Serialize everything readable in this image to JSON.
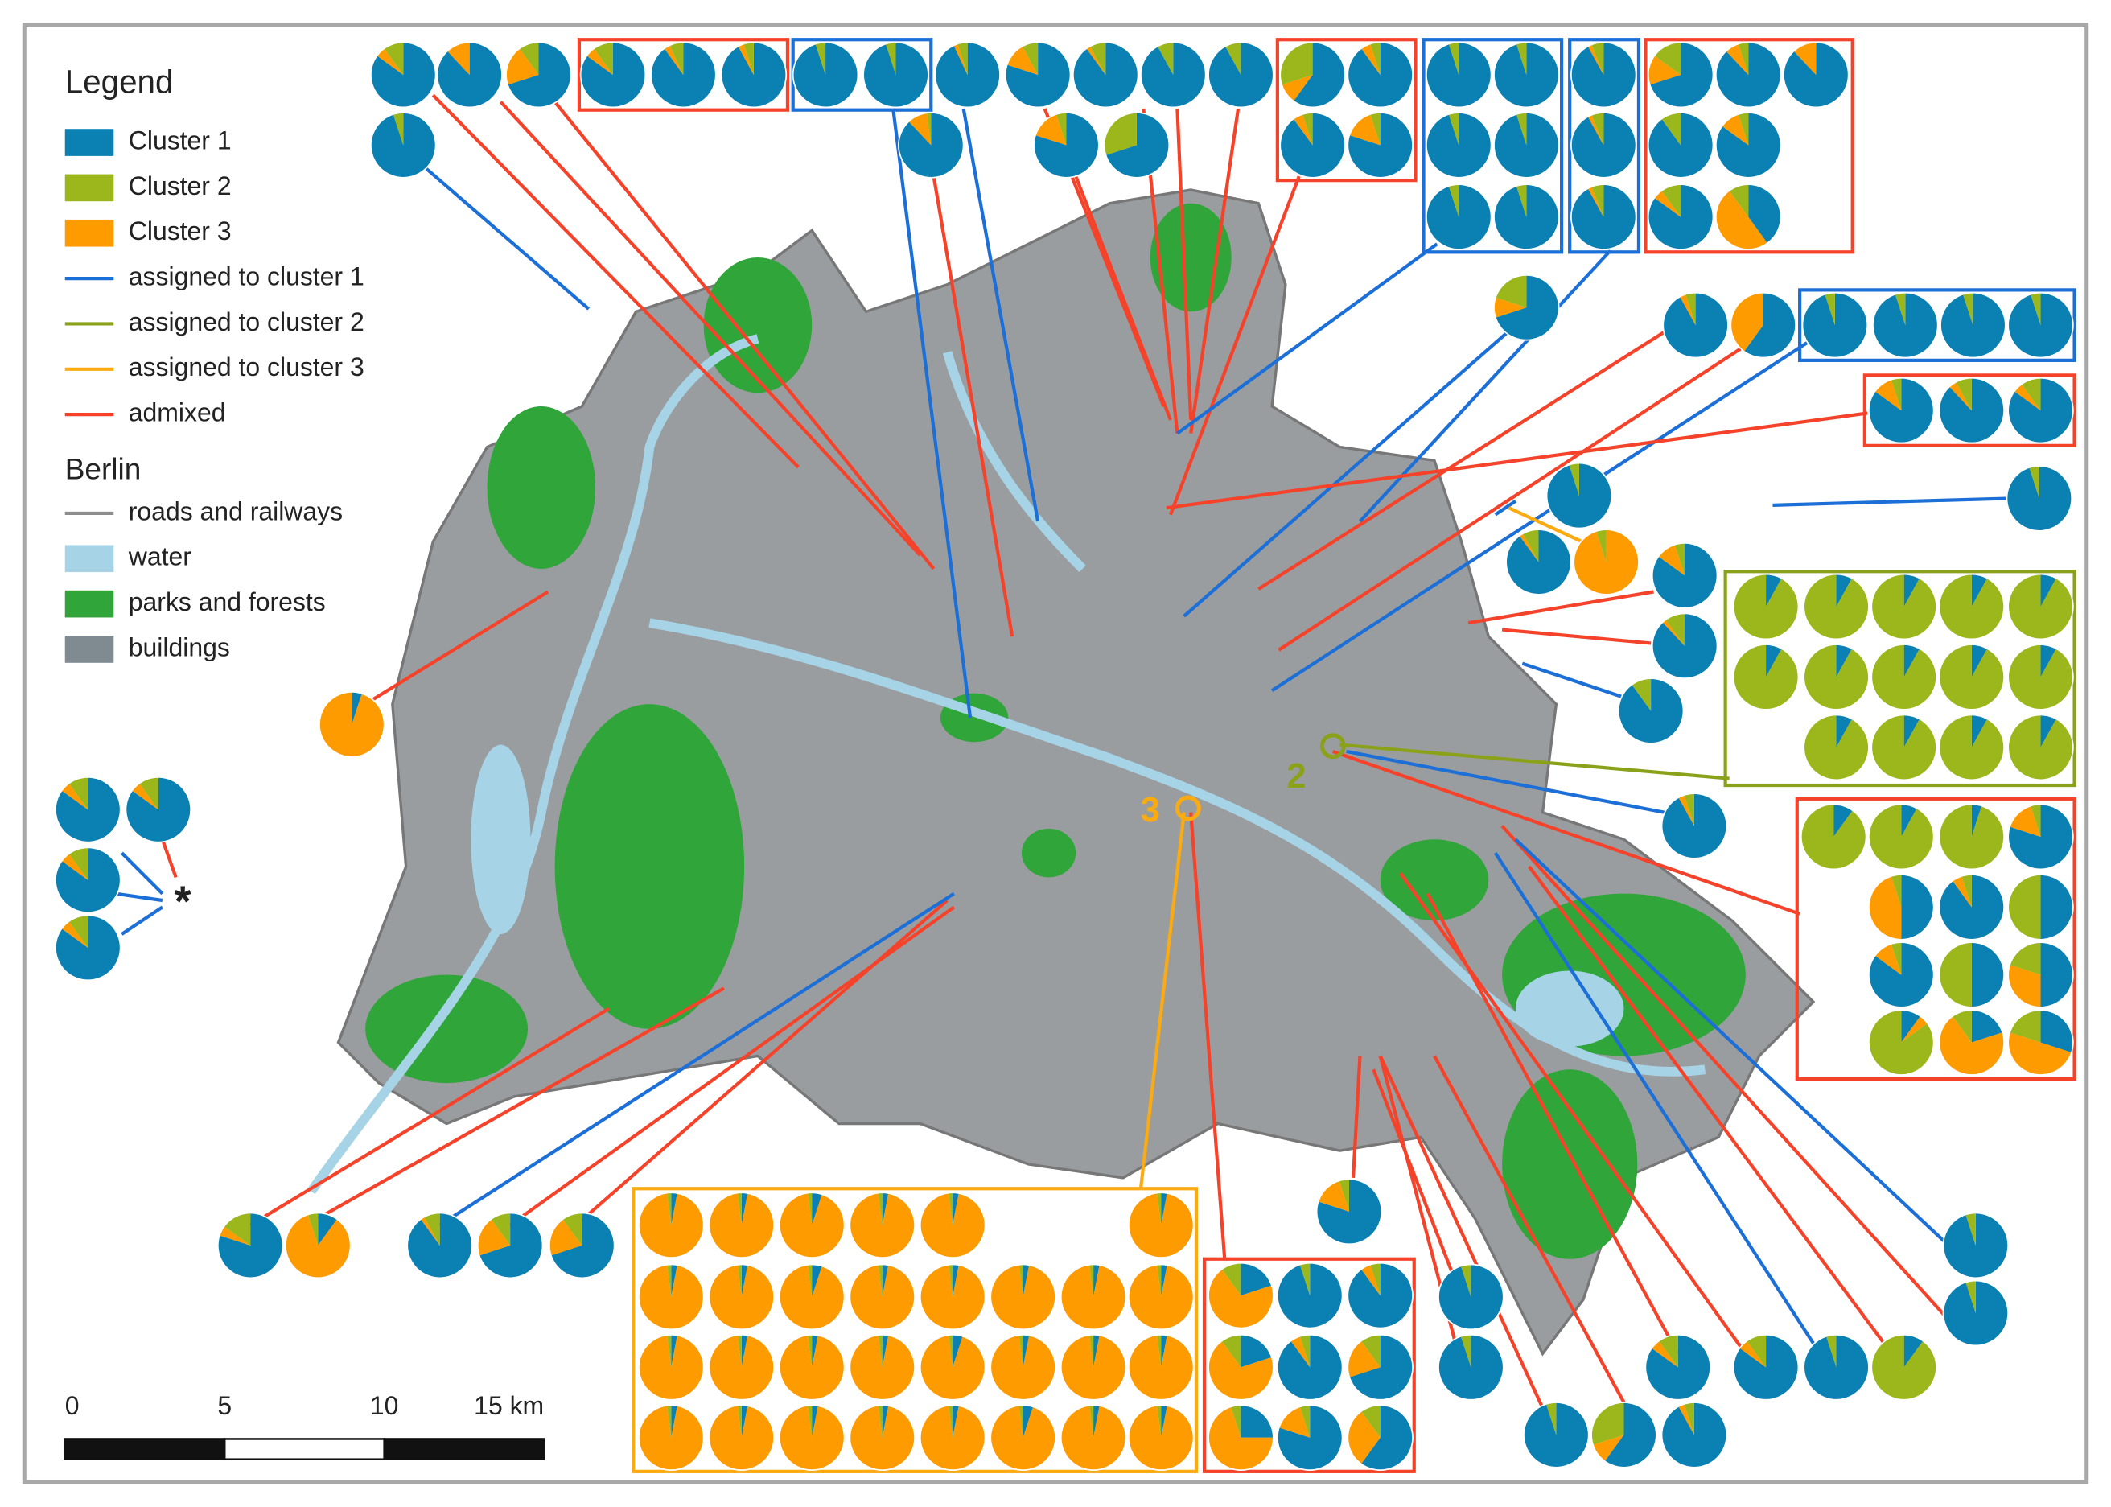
{
  "legend": {
    "title": "Legend",
    "clusters": [
      {
        "label": "Cluster 1",
        "color": "#0b80b2"
      },
      {
        "label": "Cluster 2",
        "color": "#9bb71c"
      },
      {
        "label": "Cluster 3",
        "color": "#fd9b00"
      }
    ],
    "assignments": [
      {
        "label": "assigned to cluster 1",
        "color": "#1b6fd6"
      },
      {
        "label": "assigned to cluster 2",
        "color": "#8aa21a"
      },
      {
        "label": "assigned to cluster 3",
        "color": "#fbab12"
      },
      {
        "label": "admixed",
        "color": "#f4432a"
      }
    ],
    "berlin_title": "Berlin",
    "berlin_lines": [
      {
        "label": "roads and railways",
        "color": "#8c8c8c"
      }
    ],
    "berlin_swatches": [
      {
        "label": "water",
        "color": "#a6d3e6"
      },
      {
        "label": "parks and forests",
        "color": "#2fa53a"
      },
      {
        "label": "buildings",
        "color": "#7f8a91"
      }
    ]
  },
  "map_labels": {
    "site_2": "2",
    "site_3": "3",
    "star": "*"
  },
  "scale_bar": {
    "labels": [
      "0",
      "5",
      "10",
      "15 km"
    ]
  },
  "pies": [
    [
      85,
      10,
      5
    ],
    [
      88,
      0,
      12
    ],
    [
      70,
      10,
      20
    ],
    [
      85,
      10,
      5
    ],
    [
      90,
      7,
      3
    ],
    [
      92,
      5,
      3
    ],
    [
      95,
      5,
      0
    ],
    [
      95,
      5,
      0
    ],
    [
      93,
      5,
      2
    ],
    [
      80,
      8,
      12
    ],
    [
      90,
      8,
      2
    ],
    [
      92,
      8,
      0
    ],
    [
      92,
      8,
      0
    ],
    [
      95,
      5,
      0
    ],
    [
      88,
      2,
      10
    ],
    [
      80,
      5,
      15
    ],
    [
      70,
      30,
      0
    ],
    [
      60,
      30,
      10
    ],
    [
      90,
      5,
      5
    ],
    [
      90,
      5,
      5
    ],
    [
      80,
      5,
      15
    ],
    [
      95,
      5,
      0
    ],
    [
      95,
      5,
      0
    ],
    [
      95,
      5,
      0
    ],
    [
      95,
      5,
      0
    ],
    [
      95,
      5,
      0
    ],
    [
      95,
      5,
      0
    ],
    [
      92,
      6,
      2
    ],
    [
      92,
      6,
      2
    ],
    [
      92,
      6,
      2
    ],
    [
      70,
      15,
      15
    ],
    [
      88,
      5,
      7
    ],
    [
      88,
      0,
      12
    ],
    [
      90,
      10,
      0
    ],
    [
      85,
      5,
      10
    ],
    [
      85,
      10,
      5
    ],
    [
      40,
      10,
      50
    ],
    [
      70,
      20,
      10
    ],
    [
      92,
      5,
      3
    ],
    [
      60,
      0,
      40
    ],
    [
      95,
      5,
      0
    ],
    [
      95,
      5,
      0
    ],
    [
      95,
      5,
      0
    ],
    [
      95,
      5,
      0
    ],
    [
      85,
      5,
      10
    ],
    [
      88,
      8,
      4
    ],
    [
      85,
      10,
      5
    ],
    [
      95,
      5,
      0
    ],
    [
      95,
      5,
      0
    ],
    [
      90,
      8,
      2
    ],
    [
      0,
      5,
      95
    ],
    [
      85,
      5,
      10
    ],
    [
      88,
      10,
      2
    ],
    [
      90,
      10,
      0
    ],
    [
      8,
      92,
      0
    ],
    [
      8,
      92,
      0
    ],
    [
      8,
      92,
      0
    ],
    [
      8,
      92,
      0
    ],
    [
      8,
      92,
      0
    ],
    [
      8,
      92,
      0
    ],
    [
      8,
      92,
      0
    ],
    [
      8,
      92,
      0
    ],
    [
      8,
      92,
      0
    ],
    [
      8,
      92,
      0
    ],
    [
      8,
      92,
      0
    ],
    [
      8,
      92,
      0
    ],
    [
      8,
      92,
      0
    ],
    [
      8,
      92,
      0
    ],
    [
      92,
      5,
      3
    ],
    [
      10,
      90,
      0
    ],
    [
      8,
      92,
      0
    ],
    [
      5,
      95,
      0
    ],
    [
      80,
      5,
      15
    ],
    [
      50,
      5,
      45
    ],
    [
      90,
      5,
      5
    ],
    [
      50,
      50,
      0
    ],
    [
      85,
      5,
      10
    ],
    [
      50,
      50,
      0
    ],
    [
      50,
      20,
      30
    ],
    [
      10,
      85,
      5
    ],
    [
      20,
      10,
      70
    ],
    [
      30,
      20,
      50
    ],
    [
      5,
      0,
      95
    ],
    [
      85,
      10,
      5
    ],
    [
      85,
      10,
      5
    ],
    [
      85,
      10,
      5
    ],
    [
      85,
      10,
      5
    ],
    [
      80,
      15,
      5
    ],
    [
      10,
      5,
      85
    ],
    [
      90,
      8,
      2
    ],
    [
      70,
      10,
      20
    ],
    [
      70,
      10,
      20
    ],
    [
      3,
      2,
      95
    ],
    [
      3,
      2,
      95
    ],
    [
      5,
      2,
      93
    ],
    [
      3,
      2,
      95
    ],
    [
      3,
      2,
      95
    ],
    [
      3,
      2,
      95
    ],
    [
      3,
      2,
      95
    ],
    [
      3,
      2,
      95
    ],
    [
      5,
      2,
      93
    ],
    [
      3,
      2,
      95
    ],
    [
      3,
      2,
      95
    ],
    [
      3,
      2,
      95
    ],
    [
      3,
      2,
      95
    ],
    [
      3,
      2,
      95
    ],
    [
      3,
      2,
      95
    ],
    [
      3,
      2,
      95
    ],
    [
      3,
      2,
      95
    ],
    [
      3,
      2,
      95
    ],
    [
      5,
      2,
      93
    ],
    [
      3,
      2,
      95
    ],
    [
      3,
      2,
      95
    ],
    [
      3,
      2,
      95
    ],
    [
      3,
      2,
      95
    ],
    [
      3,
      2,
      95
    ],
    [
      3,
      2,
      95
    ],
    [
      3,
      2,
      95
    ],
    [
      3,
      2,
      95
    ],
    [
      5,
      2,
      93
    ],
    [
      3,
      2,
      95
    ],
    [
      3,
      2,
      95
    ],
    [
      20,
      10,
      70
    ],
    [
      95,
      5,
      0
    ],
    [
      90,
      5,
      5
    ],
    [
      20,
      10,
      70
    ],
    [
      90,
      5,
      5
    ],
    [
      70,
      10,
      20
    ],
    [
      25,
      5,
      70
    ],
    [
      80,
      5,
      15
    ],
    [
      60,
      10,
      30
    ],
    [
      80,
      5,
      15
    ],
    [
      95,
      5,
      0
    ],
    [
      95,
      5,
      0
    ],
    [
      95,
      5,
      0
    ],
    [
      60,
      30,
      10
    ],
    [
      92,
      5,
      3
    ],
    [
      85,
      10,
      5
    ],
    [
      85,
      10,
      5
    ],
    [
      95,
      5,
      0
    ],
    [
      10,
      90,
      0
    ],
    [
      95,
      5,
      0
    ],
    [
      95,
      5,
      0
    ]
  ]
}
